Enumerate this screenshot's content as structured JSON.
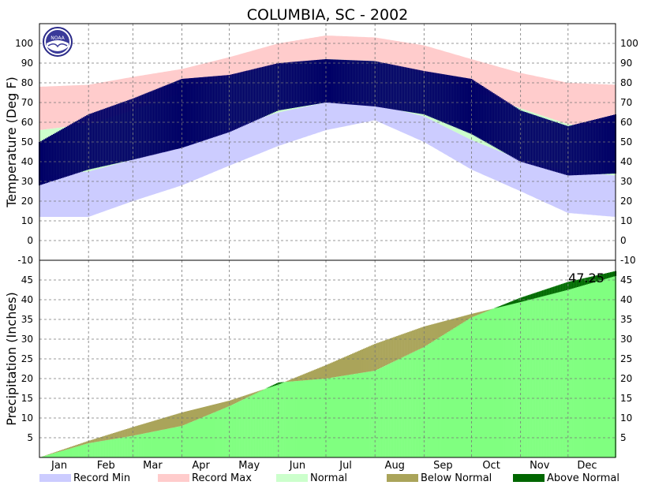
{
  "title": "COLUMBIA, SC - 2002",
  "logo_text": "NOAA",
  "final_precip_label": "47.25",
  "colors": {
    "record_min": "#ccccff",
    "record_max": "#ffcccc",
    "normal": "#ccffcc",
    "below_normal": "#aaa45a",
    "above_normal": "#006600",
    "actual_temp": "#000066",
    "precip_fill": "#80ff80",
    "grid": "#777777"
  },
  "legend": [
    {
      "label": "Record Min",
      "color": "#ccccff"
    },
    {
      "label": "Record Max",
      "color": "#ffcccc"
    },
    {
      "label": "Normal",
      "color": "#ccffcc"
    },
    {
      "label": "Below Normal",
      "color": "#aaa45a"
    },
    {
      "label": "Above Normal",
      "color": "#006600"
    }
  ],
  "chart_data": [
    {
      "type": "area",
      "ylabel": "Temperature (Deg F)",
      "ylim": [
        -10,
        110
      ],
      "y_ticks": [
        -10,
        0,
        10,
        20,
        30,
        40,
        50,
        60,
        70,
        80,
        90,
        100
      ],
      "x_ticks": [
        "Jan",
        "Feb",
        "Mar",
        "Apr",
        "May",
        "Jun",
        "Jul",
        "Aug",
        "Sep",
        "Oct",
        "Nov",
        "Dec"
      ],
      "grid": true,
      "x_day_of_year": [
        1,
        32,
        60,
        91,
        121,
        152,
        182,
        213,
        244,
        274,
        305,
        335,
        365
      ],
      "series": [
        {
          "name": "Record Max",
          "values": [
            78,
            79,
            83,
            87,
            93,
            100,
            104,
            103,
            99,
            92,
            85,
            80,
            79
          ]
        },
        {
          "name": "Record Min",
          "values": [
            12,
            12,
            20,
            28,
            38,
            48,
            56,
            61,
            50,
            36,
            25,
            14,
            12
          ]
        },
        {
          "name": "Normal High",
          "values": [
            56,
            59,
            66,
            75,
            83,
            89,
            92,
            91,
            85,
            76,
            67,
            59,
            56
          ]
        },
        {
          "name": "Normal Low",
          "values": [
            33,
            35,
            41,
            48,
            57,
            65,
            70,
            69,
            63,
            51,
            41,
            35,
            33
          ]
        },
        {
          "name": "Actual High",
          "values": [
            50,
            64,
            72,
            82,
            84,
            90,
            92,
            91,
            86,
            82,
            66,
            58,
            64
          ]
        },
        {
          "name": "Actual Low",
          "values": [
            28,
            36,
            41,
            47,
            55,
            66,
            70,
            68,
            64,
            54,
            40,
            33,
            34
          ]
        }
      ]
    },
    {
      "type": "area",
      "ylabel": "Precipitation (Inches)",
      "ylim": [
        0,
        50
      ],
      "y_ticks": [
        5,
        10,
        15,
        20,
        25,
        30,
        35,
        40,
        45
      ],
      "x_ticks": [
        "Jan",
        "Feb",
        "Mar",
        "Apr",
        "May",
        "Jun",
        "Jul",
        "Aug",
        "Sep",
        "Oct",
        "Nov",
        "Dec"
      ],
      "grid": true,
      "x_day_of_year": [
        1,
        32,
        60,
        91,
        121,
        152,
        182,
        213,
        244,
        274,
        305,
        335,
        365
      ],
      "series": [
        {
          "name": "Normal",
          "values": [
            0,
            4.2,
            7.7,
            11.4,
            14.4,
            18.5,
            23.4,
            28.8,
            33.2,
            36.4,
            39.4,
            42.5,
            46.0
          ]
        },
        {
          "name": "Actual",
          "values": [
            0,
            3.6,
            5.5,
            8.0,
            13.0,
            19.0,
            20.0,
            22.0,
            28.0,
            35.5,
            40.5,
            44.5,
            47.25
          ]
        }
      ]
    }
  ]
}
